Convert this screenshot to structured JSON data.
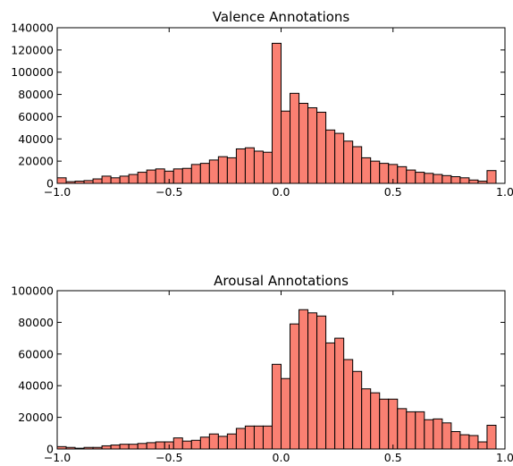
{
  "chart_data": [
    {
      "type": "bar",
      "title": "Valence Annotations",
      "xlabel": "",
      "ylabel": "",
      "xlim": [
        -1.0,
        1.0
      ],
      "ylim": [
        0,
        140000
      ],
      "xticks": [
        -1.0,
        -0.5,
        0.0,
        0.5,
        1.0
      ],
      "xtick_labels": [
        "−1.0",
        "−0.5",
        "0.0",
        "0.5",
        "1.0"
      ],
      "yticks": [
        0,
        20000,
        40000,
        60000,
        80000,
        100000,
        120000,
        140000
      ],
      "ytick_labels": [
        "0",
        "20000",
        "40000",
        "60000",
        "80000",
        "100000",
        "120000",
        "140000"
      ],
      "bin_edges_range": [
        -1.0,
        1.0
      ],
      "bins": 50,
      "bar_color": "#fa8072",
      "grid": false,
      "values": [
        5000,
        1500,
        2000,
        2500,
        4000,
        6500,
        5000,
        6500,
        8000,
        10000,
        12000,
        13000,
        11000,
        13000,
        13500,
        17000,
        18000,
        21000,
        24000,
        23000,
        31000,
        32000,
        29000,
        28000,
        126000,
        65000,
        81000,
        72000,
        68000,
        64000,
        48000,
        45000,
        38000,
        33000,
        23000,
        20000,
        18000,
        17000,
        15000,
        12000,
        10000,
        9000,
        8000,
        7000,
        6000,
        5000,
        3000,
        2000,
        11500,
        0
      ]
    },
    {
      "type": "bar",
      "title": "Arousal Annotations",
      "xlabel": "",
      "ylabel": "",
      "xlim": [
        -1.0,
        1.0
      ],
      "ylim": [
        0,
        100000
      ],
      "xticks": [
        -1.0,
        -0.5,
        0.0,
        0.5,
        1.0
      ],
      "xtick_labels": [
        "−1.0",
        "−0.5",
        "0.0",
        "0.5",
        "1.0"
      ],
      "yticks": [
        0,
        20000,
        40000,
        60000,
        80000,
        100000
      ],
      "ytick_labels": [
        "0",
        "20000",
        "40000",
        "60000",
        "80000",
        "100000"
      ],
      "bin_edges_range": [
        -1.0,
        1.0
      ],
      "bins": 50,
      "bar_color": "#fa8072",
      "grid": false,
      "values": [
        1500,
        1000,
        500,
        1000,
        1000,
        2000,
        2500,
        3000,
        3000,
        3500,
        4000,
        4500,
        4500,
        7000,
        5000,
        5500,
        7500,
        9500,
        8000,
        9500,
        13000,
        14500,
        14500,
        14500,
        53500,
        44500,
        79000,
        88000,
        86000,
        84000,
        67000,
        70000,
        56500,
        49000,
        38000,
        35500,
        31500,
        31500,
        25500,
        23500,
        23500,
        18500,
        19000,
        16500,
        11000,
        9000,
        8500,
        4500,
        15000,
        0
      ]
    }
  ]
}
